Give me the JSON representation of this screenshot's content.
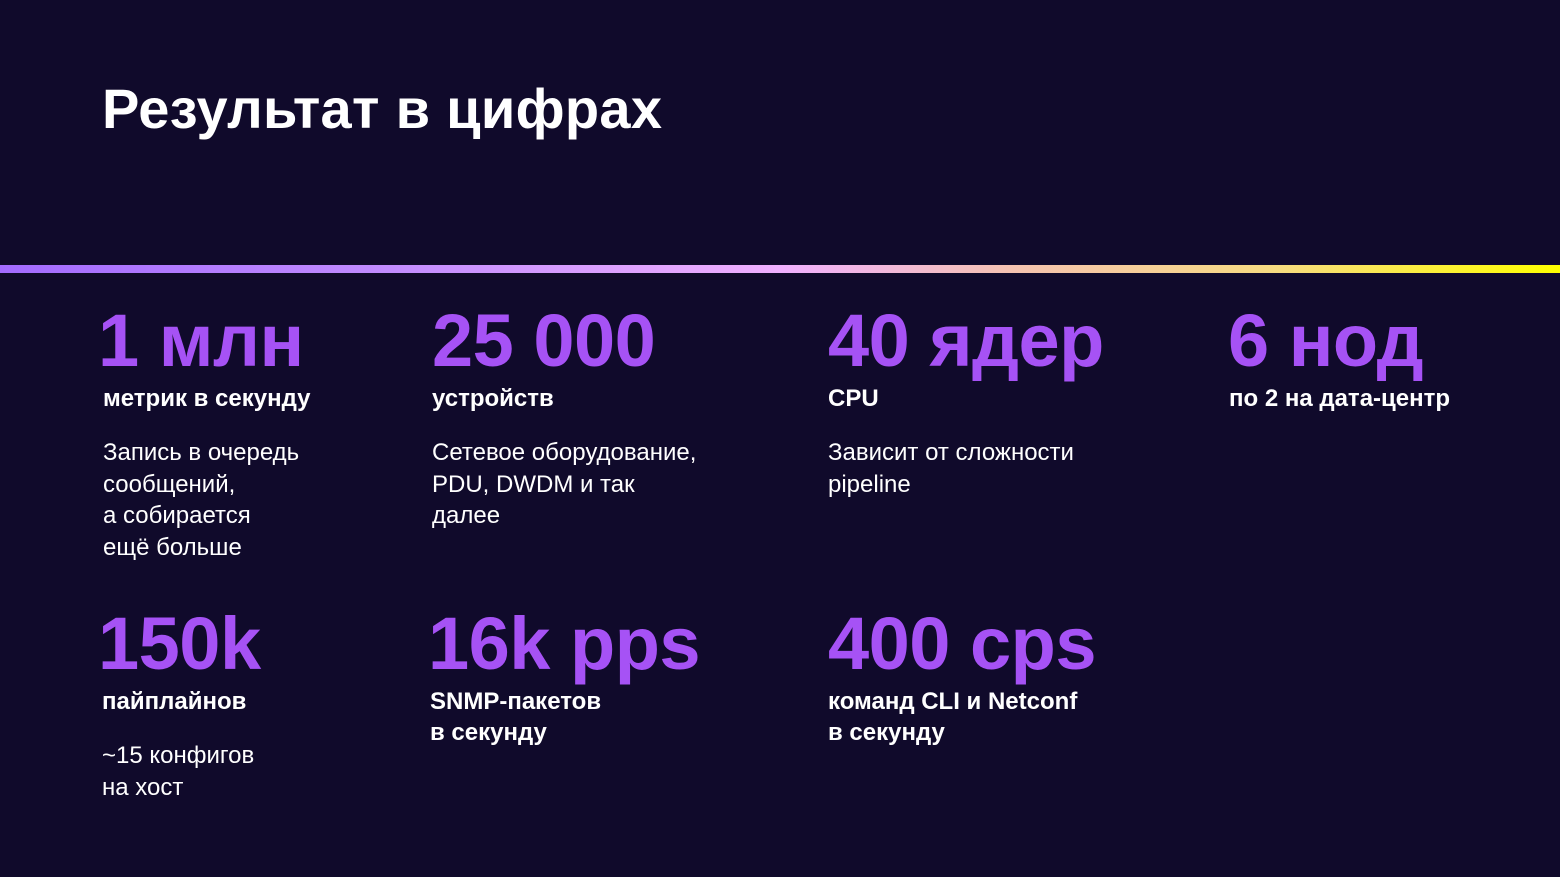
{
  "title": "Результат в цифрах",
  "colors": {
    "background": "#100a2b",
    "accent": "#a652f5",
    "rule_gradient": [
      "#a36bff",
      "#f0b0ff",
      "#ffff00"
    ]
  },
  "stats": [
    {
      "value": "1 млн",
      "label": "метрик в секунду",
      "description": [
        "Запись в очередь",
        "сообщений,",
        "а собирается",
        "ещё больше"
      ]
    },
    {
      "value": "25 000",
      "label": "устройств",
      "description": [
        "Сетевое оборудование,",
        "PDU, DWDM и так",
        "далее"
      ]
    },
    {
      "value": "40 ядер",
      "label": "CPU",
      "description": [
        "Зависит от сложности",
        "pipeline"
      ]
    },
    {
      "value": "6 нод",
      "label": "по 2 на дата-центр",
      "description": []
    },
    {
      "value": "150k",
      "label": "пайплайнов",
      "description": [
        "~15 конфигов",
        "на хост"
      ]
    },
    {
      "value": "16k pps",
      "label": "SNMP-пакетов\nв секунду",
      "description": []
    },
    {
      "value": "400 cps",
      "label": "команд CLI и Netconf\nв секунду",
      "description": []
    }
  ]
}
